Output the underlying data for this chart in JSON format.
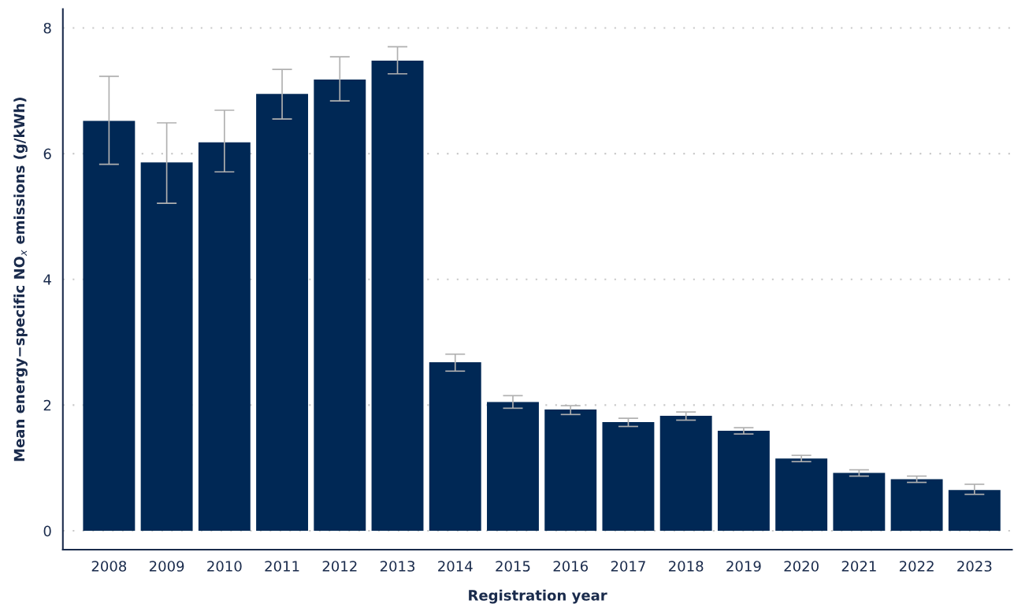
{
  "chart_data": {
    "type": "bar",
    "xlabel": "Registration year",
    "ylabel": "Mean energy−specific NO$_{x}$ emissions (g/kWh)",
    "categories": [
      "2008",
      "2009",
      "2010",
      "2011",
      "2012",
      "2013",
      "2014",
      "2015",
      "2016",
      "2017",
      "2018",
      "2019",
      "2020",
      "2021",
      "2022",
      "2023"
    ],
    "values": [
      6.52,
      5.86,
      6.18,
      6.95,
      7.18,
      7.48,
      2.68,
      2.05,
      1.93,
      1.73,
      1.83,
      1.59,
      1.15,
      0.92,
      0.82,
      0.65
    ],
    "errors": [
      [
        5.83,
        7.23
      ],
      [
        5.21,
        6.49
      ],
      [
        5.71,
        6.69
      ],
      [
        6.55,
        7.34
      ],
      [
        6.84,
        7.54
      ],
      [
        7.27,
        7.7
      ],
      [
        2.54,
        2.81
      ],
      [
        1.95,
        2.15
      ],
      [
        1.85,
        1.99
      ],
      [
        1.66,
        1.79
      ],
      [
        1.76,
        1.89
      ],
      [
        1.54,
        1.64
      ],
      [
        1.1,
        1.2
      ],
      [
        0.87,
        0.97
      ],
      [
        0.77,
        0.87
      ],
      [
        0.58,
        0.74
      ]
    ],
    "color": "#002855",
    "ylim": [
      -0.3,
      8.3
    ],
    "yticks": [
      0,
      2,
      4,
      6,
      8
    ],
    "grid": "y",
    "legend": false
  }
}
